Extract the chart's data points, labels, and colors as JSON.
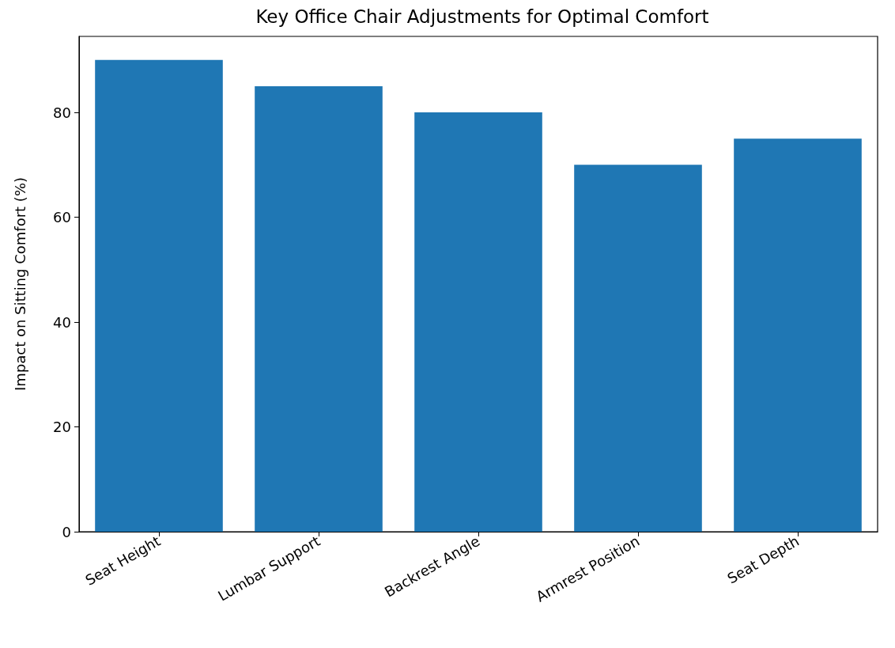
{
  "chart_data": {
    "type": "bar",
    "title": "Key Office Chair Adjustments for Optimal Comfort",
    "ylabel": "Impact on Sitting Comfort (%)",
    "categories": [
      "Seat Height",
      "Lumbar Support",
      "Backrest Angle",
      "Armrest Position",
      "Seat Depth"
    ],
    "values": [
      90,
      85,
      80,
      70,
      75
    ],
    "color": "#1f77b4",
    "ylim": [
      0,
      94.5
    ],
    "yticks": [
      0,
      20,
      40,
      60,
      80
    ]
  }
}
